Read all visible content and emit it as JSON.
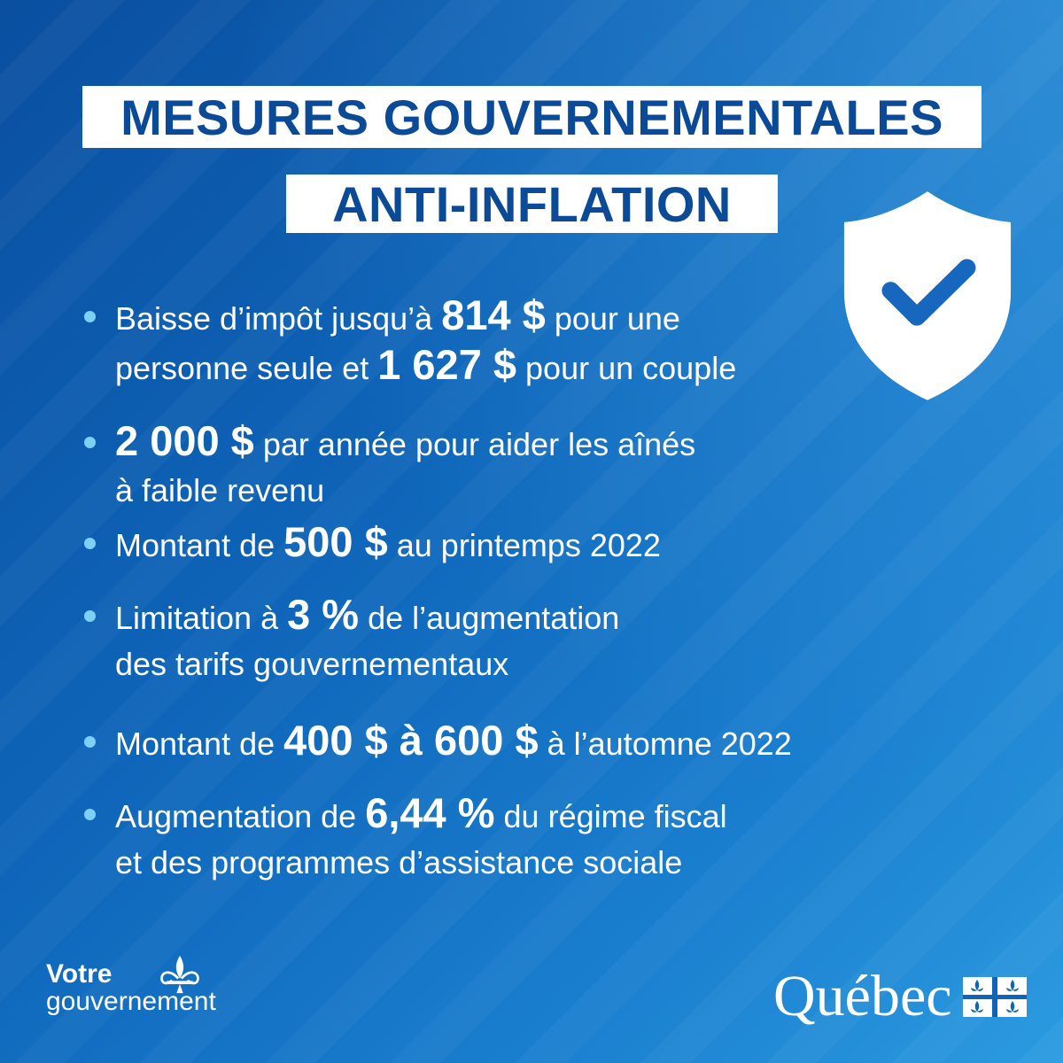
{
  "title": {
    "line1": "MESURES GOUVERNEMENTALES",
    "line2": "ANTI-INFLATION"
  },
  "icons": {
    "shield": "shield-check-icon",
    "fleur": "fleur-de-lis-icon",
    "flag": "quebec-flag-icon"
  },
  "colors": {
    "background": "#0e64b8",
    "title_text": "#0a4a96",
    "bullet": "#7fd0f7"
  },
  "items": [
    {
      "lines": [
        [
          {
            "t": "Baisse d’impôt jusqu’à "
          },
          {
            "t": "814 $",
            "b": true
          },
          {
            "t": " pour une"
          }
        ],
        [
          {
            "t": "personne seule et "
          },
          {
            "t": "1 627 $",
            "b": true
          },
          {
            "t": " pour un couple"
          }
        ]
      ]
    },
    {
      "lines": [
        [
          {
            "t": "2 000 $",
            "b": true
          },
          {
            "t": " par année pour aider les aînés"
          }
        ],
        [
          {
            "t": "à faible revenu"
          }
        ]
      ]
    },
    {
      "lines": [
        [
          {
            "t": "Montant de "
          },
          {
            "t": "500 $",
            "b": true
          },
          {
            "t": " au printemps 2022"
          }
        ]
      ]
    },
    {
      "lines": [
        [
          {
            "t": "Limitation à "
          },
          {
            "t": "3 %",
            "b": true
          },
          {
            "t": " de l’augmentation"
          }
        ],
        [
          {
            "t": "des tarifs gouvernementaux"
          }
        ]
      ]
    },
    {
      "lines": [
        [
          {
            "t": "Montant de "
          },
          {
            "t": "400 $ à 600 $",
            "b": true
          },
          {
            "t": " à l’automne 2022"
          }
        ]
      ]
    },
    {
      "lines": [
        [
          {
            "t": "Augmentation de "
          },
          {
            "t": "6,44 %",
            "b": true
          },
          {
            "t": " du régime fiscal"
          }
        ],
        [
          {
            "t": "et des programmes d’assistance sociale"
          }
        ]
      ]
    }
  ],
  "footer": {
    "votre": "Votre",
    "gouvernement": "gouvernement",
    "quebec": "Québec"
  }
}
